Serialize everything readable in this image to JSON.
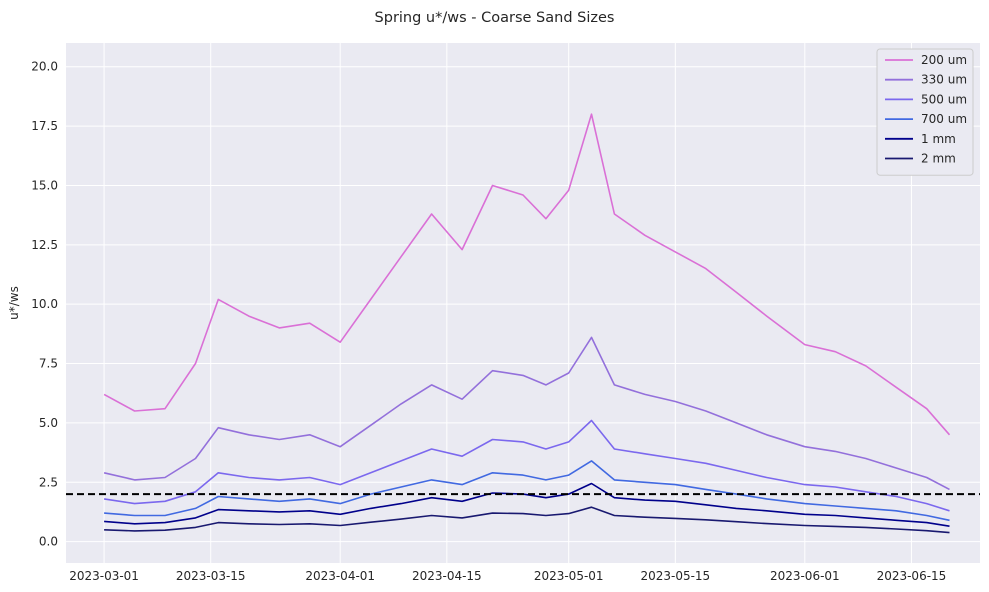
{
  "chart_data": {
    "type": "line",
    "title": "Spring u*/ws - Coarse Sand Sizes",
    "xlabel": "",
    "ylabel": "u*/ws",
    "x_ticks": [
      "2023-03-01",
      "2023-03-15",
      "2023-04-01",
      "2023-04-15",
      "2023-05-01",
      "2023-05-15",
      "2023-06-01",
      "2023-06-15"
    ],
    "y_ticks": [
      "0.0",
      "2.5",
      "5.0",
      "7.5",
      "10.0",
      "12.5",
      "15.0",
      "17.5",
      "20.0"
    ],
    "xlim": [
      "2023-02-24",
      "2023-06-24"
    ],
    "ylim": [
      -0.9,
      21.0
    ],
    "grid": true,
    "legend_position": "top-right",
    "reference_line": {
      "y": 2.0,
      "style": "dashed",
      "color": "#000000"
    },
    "series": [
      {
        "name": "200 um",
        "color": "#da70d6",
        "x": [
          "2023-03-01",
          "2023-03-05",
          "2023-03-09",
          "2023-03-13",
          "2023-03-16",
          "2023-03-20",
          "2023-03-24",
          "2023-03-28",
          "2023-04-01",
          "2023-04-05",
          "2023-04-09",
          "2023-04-13",
          "2023-04-17",
          "2023-04-21",
          "2023-04-25",
          "2023-04-28",
          "2023-05-01",
          "2023-05-04",
          "2023-05-07",
          "2023-05-11",
          "2023-05-15",
          "2023-05-19",
          "2023-05-23",
          "2023-05-27",
          "2023-06-01",
          "2023-06-05",
          "2023-06-09",
          "2023-06-13",
          "2023-06-17",
          "2023-06-20"
        ],
        "y": [
          6.2,
          5.5,
          5.6,
          7.5,
          10.2,
          9.5,
          9.0,
          9.2,
          8.4,
          10.2,
          12.0,
          13.8,
          12.3,
          15.0,
          14.6,
          13.6,
          14.8,
          18.0,
          13.8,
          12.9,
          12.2,
          11.5,
          10.5,
          9.5,
          8.3,
          8.0,
          7.4,
          6.5,
          5.6,
          4.5
        ]
      },
      {
        "name": "330 um",
        "color": "#9370db",
        "x": [
          "2023-03-01",
          "2023-03-05",
          "2023-03-09",
          "2023-03-13",
          "2023-03-16",
          "2023-03-20",
          "2023-03-24",
          "2023-03-28",
          "2023-04-01",
          "2023-04-05",
          "2023-04-09",
          "2023-04-13",
          "2023-04-17",
          "2023-04-21",
          "2023-04-25",
          "2023-04-28",
          "2023-05-01",
          "2023-05-04",
          "2023-05-07",
          "2023-05-11",
          "2023-05-15",
          "2023-05-19",
          "2023-05-23",
          "2023-05-27",
          "2023-06-01",
          "2023-06-05",
          "2023-06-09",
          "2023-06-13",
          "2023-06-17",
          "2023-06-20"
        ],
        "y": [
          2.9,
          2.6,
          2.7,
          3.5,
          4.8,
          4.5,
          4.3,
          4.5,
          4.0,
          4.9,
          5.8,
          6.6,
          6.0,
          7.2,
          7.0,
          6.6,
          7.1,
          8.6,
          6.6,
          6.2,
          5.9,
          5.5,
          5.0,
          4.5,
          4.0,
          3.8,
          3.5,
          3.1,
          2.7,
          2.2
        ]
      },
      {
        "name": "500 um",
        "color": "#7b68ee",
        "x": [
          "2023-03-01",
          "2023-03-05",
          "2023-03-09",
          "2023-03-13",
          "2023-03-16",
          "2023-03-20",
          "2023-03-24",
          "2023-03-28",
          "2023-04-01",
          "2023-04-05",
          "2023-04-09",
          "2023-04-13",
          "2023-04-17",
          "2023-04-21",
          "2023-04-25",
          "2023-04-28",
          "2023-05-01",
          "2023-05-04",
          "2023-05-07",
          "2023-05-11",
          "2023-05-15",
          "2023-05-19",
          "2023-05-23",
          "2023-05-27",
          "2023-06-01",
          "2023-06-05",
          "2023-06-09",
          "2023-06-13",
          "2023-06-17",
          "2023-06-20"
        ],
        "y": [
          1.8,
          1.6,
          1.7,
          2.1,
          2.9,
          2.7,
          2.6,
          2.7,
          2.4,
          2.9,
          3.4,
          3.9,
          3.6,
          4.3,
          4.2,
          3.9,
          4.2,
          5.1,
          3.9,
          3.7,
          3.5,
          3.3,
          3.0,
          2.7,
          2.4,
          2.3,
          2.1,
          1.9,
          1.6,
          1.3
        ]
      },
      {
        "name": "700 um",
        "color": "#4169e1",
        "x": [
          "2023-03-01",
          "2023-03-05",
          "2023-03-09",
          "2023-03-13",
          "2023-03-16",
          "2023-03-20",
          "2023-03-24",
          "2023-03-28",
          "2023-04-01",
          "2023-04-05",
          "2023-04-09",
          "2023-04-13",
          "2023-04-17",
          "2023-04-21",
          "2023-04-25",
          "2023-04-28",
          "2023-05-01",
          "2023-05-04",
          "2023-05-07",
          "2023-05-11",
          "2023-05-15",
          "2023-05-19",
          "2023-05-23",
          "2023-05-27",
          "2023-06-01",
          "2023-06-05",
          "2023-06-09",
          "2023-06-13",
          "2023-06-17",
          "2023-06-20"
        ],
        "y": [
          1.2,
          1.1,
          1.1,
          1.4,
          1.9,
          1.8,
          1.7,
          1.8,
          1.6,
          2.0,
          2.3,
          2.6,
          2.4,
          2.9,
          2.8,
          2.6,
          2.8,
          3.4,
          2.6,
          2.5,
          2.4,
          2.2,
          2.0,
          1.8,
          1.6,
          1.5,
          1.4,
          1.3,
          1.1,
          0.9
        ]
      },
      {
        "name": "1 mm",
        "color": "#00008b",
        "x": [
          "2023-03-01",
          "2023-03-05",
          "2023-03-09",
          "2023-03-13",
          "2023-03-16",
          "2023-03-20",
          "2023-03-24",
          "2023-03-28",
          "2023-04-01",
          "2023-04-05",
          "2023-04-09",
          "2023-04-13",
          "2023-04-17",
          "2023-04-21",
          "2023-04-25",
          "2023-04-28",
          "2023-05-01",
          "2023-05-04",
          "2023-05-07",
          "2023-05-11",
          "2023-05-15",
          "2023-05-19",
          "2023-05-23",
          "2023-05-27",
          "2023-06-01",
          "2023-06-05",
          "2023-06-09",
          "2023-06-13",
          "2023-06-17",
          "2023-06-20"
        ],
        "y": [
          0.85,
          0.75,
          0.8,
          1.0,
          1.35,
          1.3,
          1.25,
          1.3,
          1.15,
          1.4,
          1.6,
          1.85,
          1.7,
          2.05,
          2.0,
          1.85,
          2.0,
          2.45,
          1.85,
          1.75,
          1.7,
          1.55,
          1.4,
          1.3,
          1.15,
          1.1,
          1.0,
          0.9,
          0.8,
          0.65
        ]
      },
      {
        "name": "2 mm",
        "color": "#191970",
        "x": [
          "2023-03-01",
          "2023-03-05",
          "2023-03-09",
          "2023-03-13",
          "2023-03-16",
          "2023-03-20",
          "2023-03-24",
          "2023-03-28",
          "2023-04-01",
          "2023-04-05",
          "2023-04-09",
          "2023-04-13",
          "2023-04-17",
          "2023-04-21",
          "2023-04-25",
          "2023-04-28",
          "2023-05-01",
          "2023-05-04",
          "2023-05-07",
          "2023-05-11",
          "2023-05-15",
          "2023-05-19",
          "2023-05-23",
          "2023-05-27",
          "2023-06-01",
          "2023-06-05",
          "2023-06-09",
          "2023-06-13",
          "2023-06-17",
          "2023-06-20"
        ],
        "y": [
          0.5,
          0.45,
          0.48,
          0.6,
          0.8,
          0.75,
          0.72,
          0.75,
          0.68,
          0.82,
          0.95,
          1.1,
          1.0,
          1.2,
          1.18,
          1.1,
          1.18,
          1.45,
          1.1,
          1.03,
          0.98,
          0.92,
          0.84,
          0.76,
          0.68,
          0.64,
          0.6,
          0.53,
          0.46,
          0.38
        ]
      }
    ]
  }
}
